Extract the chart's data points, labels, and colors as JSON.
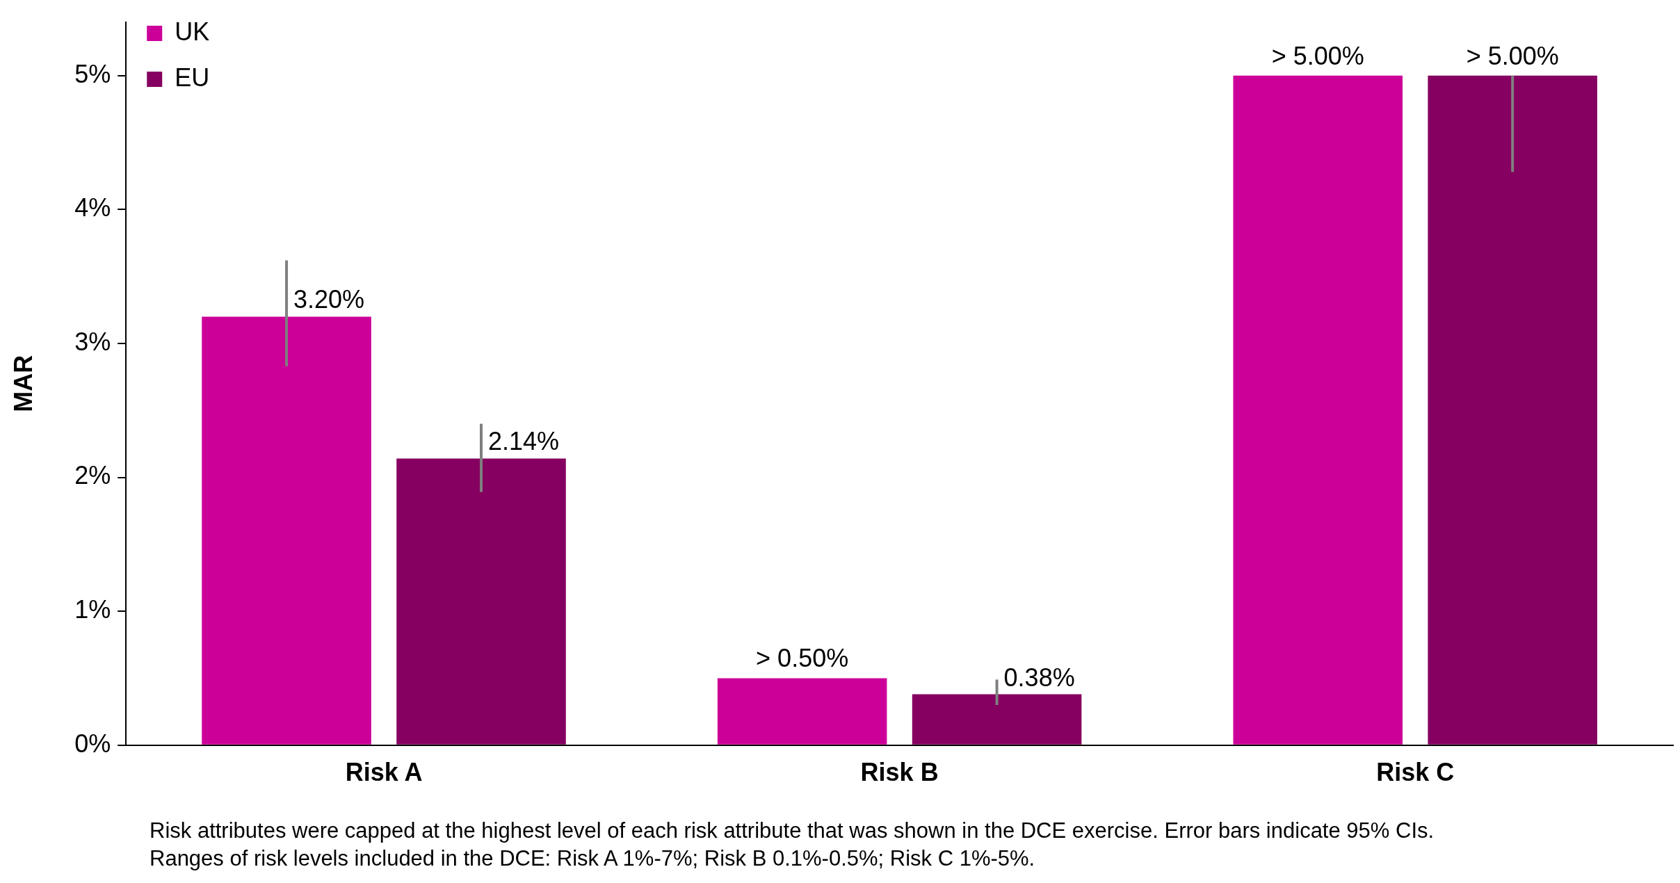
{
  "chart_data": {
    "type": "bar",
    "ylabel": "MAR",
    "categories": [
      "Risk A",
      "Risk B",
      "Risk C"
    ],
    "series": [
      {
        "name": "UK",
        "color": "#cc0099",
        "values": [
          3.2,
          0.5,
          5.0
        ],
        "value_labels": [
          "3.20%",
          "> 0.50%",
          "> 5.00%"
        ],
        "errors": [
          [
            2.83,
            3.62
          ],
          null,
          null
        ]
      },
      {
        "name": "EU",
        "color": "#850060",
        "values": [
          2.14,
          0.38,
          5.0
        ],
        "value_labels": [
          "2.14%",
          "0.38%",
          "> 5.00%"
        ],
        "errors": [
          [
            1.89,
            2.4
          ],
          [
            0.3,
            0.49
          ],
          [
            4.28,
            5.0
          ]
        ]
      }
    ],
    "ylim": [
      0,
      5.4
    ],
    "yticks": [
      {
        "value": 0,
        "label": "0%"
      },
      {
        "value": 1,
        "label": "1%"
      },
      {
        "value": 2,
        "label": "2%"
      },
      {
        "value": 3,
        "label": "3%"
      },
      {
        "value": 4,
        "label": "4%"
      },
      {
        "value": 5,
        "label": "5%"
      }
    ],
    "grid": false,
    "legend": "top left",
    "annotations": [
      "Risk attributes were capped at the highest level of each risk attribute that was shown in the DCE exercise. Error bars indicate 95% CIs.",
      "Ranges of risk levels included in the DCE: Risk A 1%-7%; Risk B 0.1%-0.5%; Risk C 1%-5%."
    ]
  }
}
